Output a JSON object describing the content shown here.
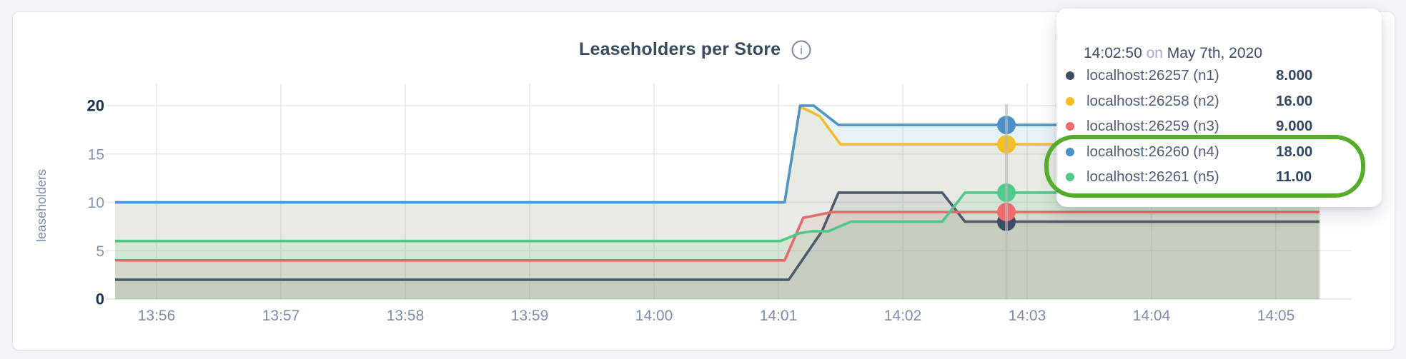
{
  "chart_data": {
    "type": "line",
    "title": "Leaseholders per Store",
    "ylabel": "leaseholders",
    "xlabel": "",
    "x_ticks": [
      "13:56",
      "13:57",
      "13:58",
      "13:59",
      "14:00",
      "14:01",
      "14:02",
      "14:03",
      "14:04",
      "14:05"
    ],
    "y_ticks": [
      0,
      5,
      10,
      15,
      20
    ],
    "ylim": [
      0,
      20
    ],
    "x_range_seconds_from_1356": [
      -20,
      561
    ],
    "grid": true,
    "legend_position": "hover-tooltip",
    "series": [
      {
        "name": "localhost:26257 (n1)",
        "color": "#4d5a6b",
        "dot_color": "#3f4c66",
        "points": [
          [
            -20,
            2
          ],
          [
            305,
            2
          ],
          [
            321,
            7
          ],
          [
            329,
            11
          ],
          [
            379,
            11
          ],
          [
            390,
            8
          ],
          [
            561,
            8
          ]
        ]
      },
      {
        "name": "localhost:26258 (n2)",
        "color": "#efbd30",
        "dot_color": "#f5be25",
        "points": [
          [
            -20,
            10
          ],
          [
            303,
            10
          ],
          [
            310.5,
            19.9
          ],
          [
            320,
            18.9
          ],
          [
            330,
            16
          ],
          [
            561,
            16
          ]
        ]
      },
      {
        "name": "localhost:26259 (n3)",
        "color": "#e56b6b",
        "dot_color": "#ee6c6c",
        "points": [
          [
            -20,
            4
          ],
          [
            303,
            4
          ],
          [
            312,
            8.4
          ],
          [
            326,
            9
          ],
          [
            561,
            9
          ]
        ]
      },
      {
        "name": "localhost:26260 (n4)",
        "color": "#4f95ca",
        "dot_color": "#4a91c7",
        "points": [
          [
            -20,
            10
          ],
          [
            303,
            10
          ],
          [
            310.5,
            20
          ],
          [
            317,
            20
          ],
          [
            329,
            18
          ],
          [
            561,
            18
          ]
        ]
      },
      {
        "name": "localhost:26261 (n5)",
        "color": "#50c787",
        "dot_color": "#4ecb8c",
        "points": [
          [
            -20,
            6
          ],
          [
            301,
            6
          ],
          [
            310,
            6.8
          ],
          [
            316,
            7
          ],
          [
            324,
            7
          ],
          [
            335,
            8
          ],
          [
            379,
            8
          ],
          [
            390,
            11
          ],
          [
            561,
            11
          ]
        ]
      }
    ],
    "hover": {
      "time_label": "14:02:50",
      "t_sec": 410,
      "values": [
        8,
        16,
        9,
        18,
        11
      ]
    }
  },
  "header": {
    "title": "Leaseholders per Store",
    "info_icon": "info-circle"
  },
  "tooltip": {
    "time": "14:02:50",
    "connector": "on",
    "date": "May 7th, 2020",
    "rows": [
      {
        "name": "localhost:26257 (n1)",
        "value": "8.000",
        "color": "#3f4c66"
      },
      {
        "name": "localhost:26258 (n2)",
        "value": "16.00",
        "color": "#f5be25"
      },
      {
        "name": "localhost:26259 (n3)",
        "value": "9.000",
        "color": "#ee6c6c"
      },
      {
        "name": "localhost:26260 (n4)",
        "value": "18.00",
        "color": "#4a91c7"
      },
      {
        "name": "localhost:26261 (n5)",
        "value": "11.00",
        "color": "#4ecb8c"
      }
    ]
  },
  "annotation": {
    "shape": "rounded-rect-outline",
    "color": "#53ad2a",
    "wraps": [
      "localhost:26260 (n4)",
      "localhost:26261 (n5)"
    ]
  },
  "colors": {
    "page_bg": "#f2f4f8",
    "card_bg": "#ffffff",
    "grid": "#e5e7eb",
    "axis_line": "#dde1e6",
    "tick_label": "#8593ae",
    "tick_label_bold": "#16304e",
    "x_label": "#7e8ca9",
    "hover_line": "#b9babc",
    "title": "#3b4a5f"
  }
}
